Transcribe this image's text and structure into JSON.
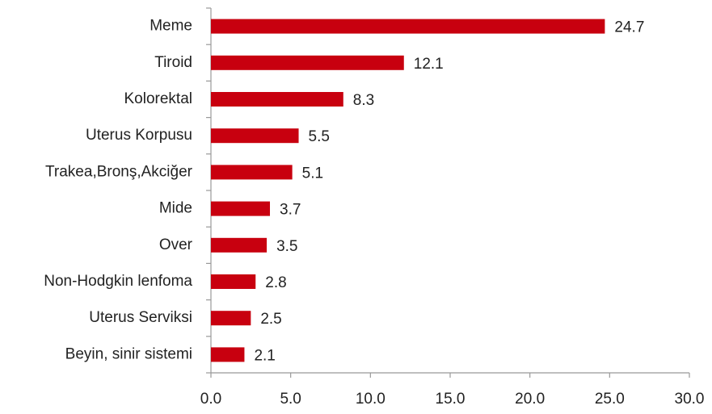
{
  "chart_data": {
    "type": "barh",
    "categories": [
      "Meme",
      "Tiroid",
      "Kolorektal",
      "Uterus Korpusu",
      "Trakea,Bronş,Akciğer",
      "Mide",
      "Over",
      "Non-Hodgkin lenfoma",
      "Uterus Serviksi",
      "Beyin, sinir sistemi"
    ],
    "values": [
      24.7,
      12.1,
      8.3,
      5.5,
      5.1,
      3.7,
      3.5,
      2.8,
      2.5,
      2.1
    ],
    "color": "#c8000f",
    "xlim": [
      0,
      30
    ],
    "xticks": [
      {
        "value": 0,
        "label": "0.0"
      },
      {
        "value": 5,
        "label": "5.0"
      },
      {
        "value": 10,
        "label": "10.0"
      },
      {
        "value": 15,
        "label": "15.0"
      },
      {
        "value": 20,
        "label": "20.0"
      },
      {
        "value": 25,
        "label": "25.0"
      },
      {
        "value": 30,
        "label": "30.0"
      }
    ],
    "grid": false
  }
}
